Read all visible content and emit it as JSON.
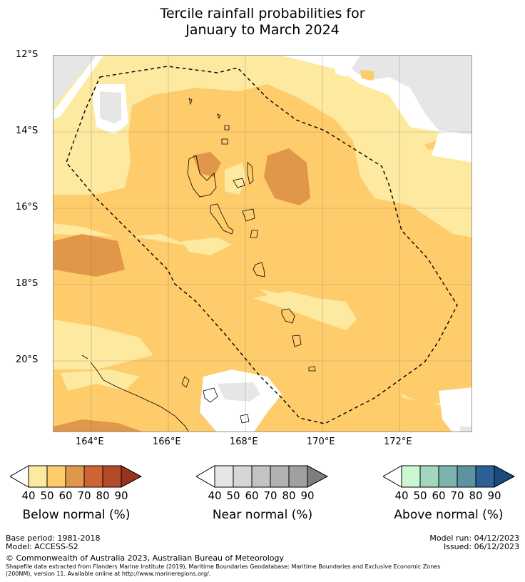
{
  "title": {
    "line1": "Tercile rainfall probabilities for",
    "line2": "January to March 2024"
  },
  "map": {
    "lat_labels": [
      "12°S",
      "14°S",
      "16°S",
      "18°S",
      "20°S"
    ],
    "lon_labels": [
      "164°E",
      "166°E",
      "168°E",
      "170°E",
      "172°E"
    ],
    "lon_range": [
      163,
      173.8
    ],
    "lat_range": [
      -22,
      -12
    ]
  },
  "colorbars": [
    {
      "label": "Below normal (%)",
      "ticks": [
        "40",
        "50",
        "60",
        "70",
        "80",
        "90"
      ],
      "colors": [
        "#ffffff",
        "#fee9a0",
        "#fecc6a",
        "#e0974a",
        "#cf6535",
        "#b34a2a",
        "#98321e"
      ]
    },
    {
      "label": "Near normal (%)",
      "ticks": [
        "40",
        "50",
        "60",
        "70",
        "80",
        "90"
      ],
      "colors": [
        "#ffffff",
        "#e6e6e6",
        "#d6d6d6",
        "#c3c3c3",
        "#b1b1b1",
        "#a0a0a0",
        "#7d7d7d"
      ]
    },
    {
      "label": "Above normal (%)",
      "ticks": [
        "40",
        "50",
        "60",
        "70",
        "80",
        "90"
      ],
      "colors": [
        "#ffffff",
        "#c9f7d0",
        "#a2d6bd",
        "#7bb3ae",
        "#5b94a0",
        "#2c5f94",
        "#1a4a7e"
      ]
    }
  ],
  "footer": {
    "base_period": "Base period: 1981-2018",
    "model": "Model: ACCESS-S2",
    "model_run": "Model run: 04/12/2023",
    "issued": "Issued: 06/12/2023",
    "copyright": "© Commonwealth of Australia 2023, Australian Bureau of Meteorology",
    "shapefile_line1": "Shapefile data extracted from Flanders Marine Institute (2019), Maritime Boundaries Geodatabase: Maritime Boundaries and Exclusive Economic Zones",
    "shapefile_line2": "(200NM), version 11. Available online at http://www.marineregions.org/."
  }
}
